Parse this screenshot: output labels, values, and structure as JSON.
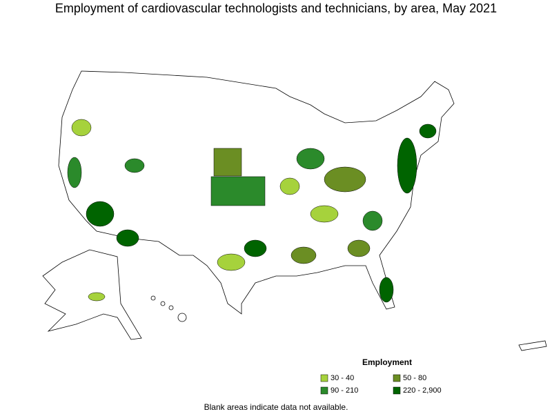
{
  "title": "Employment of cardiovascular technologists and technicians, by area, May 2021",
  "legend": {
    "title": "Employment",
    "items": [
      {
        "label": "30 - 40",
        "color": "#a6d23c"
      },
      {
        "label": "50 - 80",
        "color": "#6b8e23"
      },
      {
        "label": "90 - 210",
        "color": "#2b8a2b"
      },
      {
        "label": "220 - 2,900",
        "color": "#006400"
      }
    ]
  },
  "footnote": "Blank areas indicate data not available."
}
